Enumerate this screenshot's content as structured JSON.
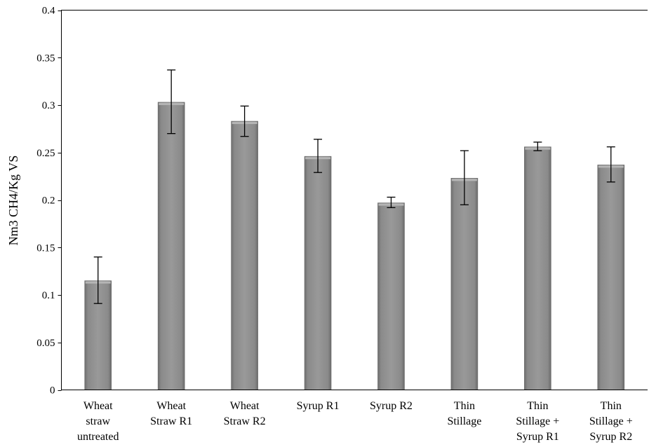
{
  "chart_data": {
    "type": "bar",
    "title": "",
    "xlabel": "",
    "ylabel": "Nm3 CH4/Kg VS",
    "ylim": [
      0,
      0.4
    ],
    "yticks": [
      "0",
      "0.05",
      "0.1",
      "0.15",
      "0.2",
      "0.25",
      "0.3",
      "0.35",
      "0.4"
    ],
    "grid": false,
    "legend": "none",
    "categories": [
      [
        "Wheat",
        "straw",
        "untreated"
      ],
      [
        "Wheat",
        "Straw R1"
      ],
      [
        "Wheat",
        "Straw R2"
      ],
      [
        "Syrup R1"
      ],
      [
        "Syrup R2"
      ],
      [
        "Thin",
        "Stillage"
      ],
      [
        "Thin",
        "Stillage +",
        "Syrup R1"
      ],
      [
        "Thin",
        "Stillage +",
        "Syrup R2"
      ]
    ],
    "values": [
      0.115,
      0.303,
      0.283,
      0.246,
      0.197,
      0.223,
      0.256,
      0.237
    ],
    "error_low": [
      0.091,
      0.27,
      0.267,
      0.229,
      0.192,
      0.195,
      0.252,
      0.219
    ],
    "error_high": [
      0.14,
      0.337,
      0.299,
      0.264,
      0.203,
      0.252,
      0.261,
      0.256
    ],
    "bar_color": "#8c8c8c"
  }
}
